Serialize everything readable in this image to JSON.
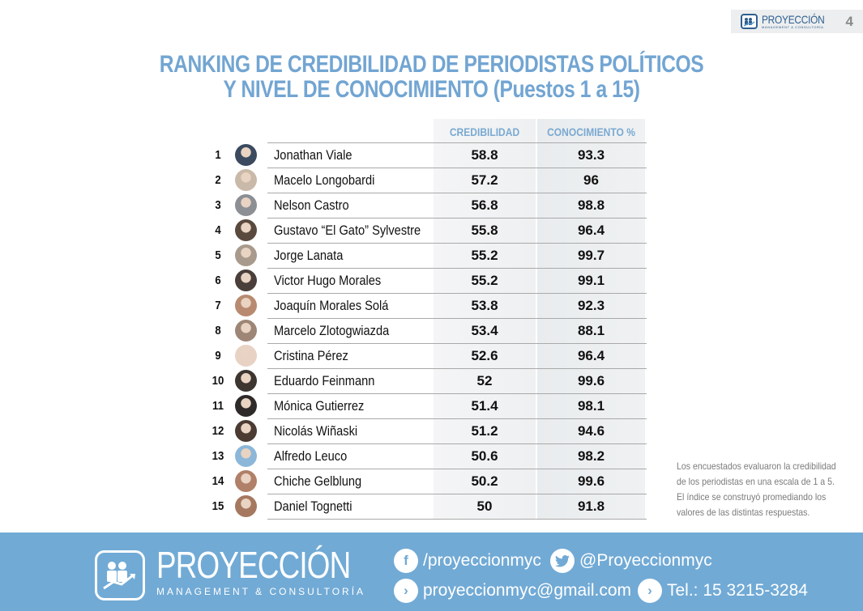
{
  "header": {
    "brand": "PROYECCIÓN",
    "brand_sub": "MANAGEMENT & CONSULTORÍA",
    "page_number": "4"
  },
  "title": {
    "line1": "RANKING DE CREDIBILIDAD DE PERIODISTAS POLÍTICOS",
    "line2": "Y NIVEL DE CONOCIMIENTO (Puestos 1 a 15)"
  },
  "table": {
    "columns": [
      "CREDIBILIDAD",
      "CONOCIMIENTO %"
    ],
    "rows": [
      {
        "rank": "1",
        "name": "Jonathan Viale",
        "credibilidad": "58.8",
        "conocimiento": "93.3"
      },
      {
        "rank": "2",
        "name": "Macelo Longobardi",
        "credibilidad": "57.2",
        "conocimiento": "96"
      },
      {
        "rank": "3",
        "name": "Nelson Castro",
        "credibilidad": "56.8",
        "conocimiento": "98.8"
      },
      {
        "rank": "4",
        "name": "Gustavo “El Gato” Sylvestre",
        "credibilidad": "55.8",
        "conocimiento": "96.4"
      },
      {
        "rank": "5",
        "name": "Jorge Lanata",
        "credibilidad": "55.2",
        "conocimiento": "99.7"
      },
      {
        "rank": "6",
        "name": "Victor Hugo Morales",
        "credibilidad": "55.2",
        "conocimiento": "99.1"
      },
      {
        "rank": "7",
        "name": "Joaquín Morales Solá",
        "credibilidad": "53.8",
        "conocimiento": "92.3"
      },
      {
        "rank": "8",
        "name": "Marcelo Zlotogwiazda",
        "credibilidad": "53.4",
        "conocimiento": "88.1"
      },
      {
        "rank": "9",
        "name": "Cristina Pérez",
        "credibilidad": "52.6",
        "conocimiento": "96.4"
      },
      {
        "rank": "10",
        "name": "Eduardo Feinmann",
        "credibilidad": "52",
        "conocimiento": "99.6"
      },
      {
        "rank": "11",
        "name": "Mónica Gutierrez",
        "credibilidad": "51.4",
        "conocimiento": "98.1"
      },
      {
        "rank": "12",
        "name": "Nicolás Wiñaski",
        "credibilidad": "51.2",
        "conocimiento": "94.6"
      },
      {
        "rank": "13",
        "name": "Alfredo Leuco",
        "credibilidad": "50.6",
        "conocimiento": "98.2"
      },
      {
        "rank": "14",
        "name": "Chiche Gelblung",
        "credibilidad": "50.2",
        "conocimiento": "99.6"
      },
      {
        "rank": "15",
        "name": "Daniel Tognetti",
        "credibilidad": "50",
        "conocimiento": "91.8"
      }
    ]
  },
  "note": [
    "Los encuestados evaluaron la credibilidad",
    "de los periodistas en una escala de 1 a 5.",
    "El índice se construyó promediando los",
    "valores de las distintas respuestas."
  ],
  "footer": {
    "brand": "PROYECCIÓN",
    "brand_sub": "MANAGEMENT & CONSULTORÍA",
    "facebook": "/proyeccionmyc",
    "twitter": "@Proyeccionmyc",
    "email": "proyeccionmyc@gmail.com",
    "phone": "Tel.: 15 3215-3284",
    "icons": {
      "facebook": "f",
      "twitter": "🐦",
      "email": "›",
      "phone": "›"
    }
  },
  "colors": {
    "accent": "#72a5d2",
    "footer_bg": "#71aad5",
    "header_text": "#7aa9d2",
    "logo_dark": "#2e5f8f"
  },
  "avatars": [
    "#3b4a5e",
    "#c9b9a8",
    "#8c8f94",
    "#5a4a3e",
    "#a89a8c",
    "#4a3f3a",
    "#b88a70",
    "#9e8676",
    "#e8d2c4",
    "#3c3530",
    "#2e2a2a",
    "#4b3b33",
    "#8cb7d8",
    "#b08068",
    "#a67860"
  ]
}
